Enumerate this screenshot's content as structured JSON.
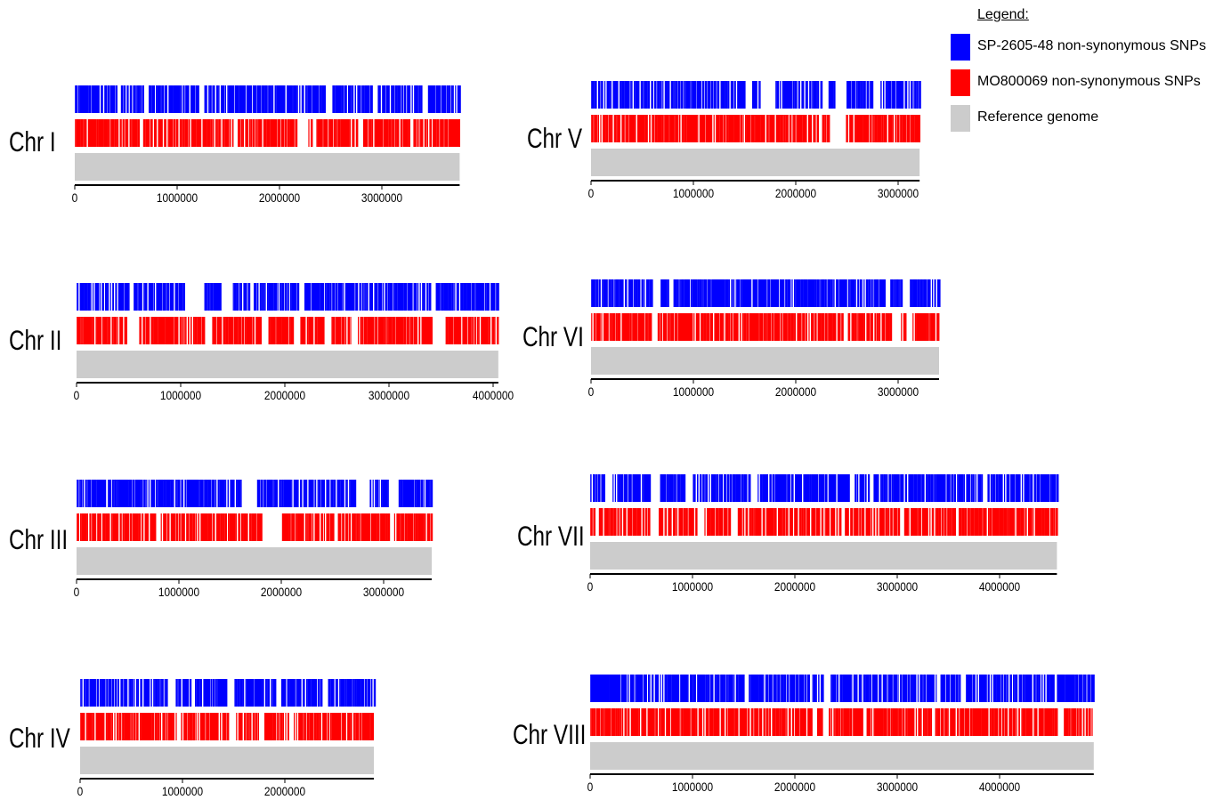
{
  "legend": {
    "title": "Legend:",
    "items": [
      {
        "label": "SP-2605-48 non-synonymous SNPs",
        "color": "#0000ff"
      },
      {
        "label": "MO800069 non-synonymous SNPs",
        "color": "#ff0000"
      },
      {
        "label": "Reference genome",
        "color": "#cccccc"
      }
    ]
  },
  "chart_data": [
    {
      "type": "bar",
      "title": "Chr I",
      "length": 3760000,
      "xticks": [
        0,
        1000000,
        2000000,
        3000000
      ],
      "series": [
        {
          "name": "SP-2605-48 non-synonymous SNPs",
          "color": "#0000ff",
          "gaps": [
            [
              400000,
              450000
            ],
            [
              680000,
              720000
            ],
            [
              1200000,
              1260000
            ],
            [
              2450000,
              2500000
            ],
            [
              2920000,
              2960000
            ],
            [
              3400000,
              3430000
            ]
          ]
        },
        {
          "name": "MO800069 non-synonymous SNPs",
          "color": "#ff0000",
          "gaps": [
            [
              630000,
              660000
            ],
            [
              1550000,
              1590000
            ],
            [
              2170000,
              2280000
            ],
            [
              2320000,
              2340000
            ],
            [
              2760000,
              2800000
            ],
            [
              3270000,
              3300000
            ]
          ]
        },
        {
          "name": "Reference genome",
          "color": "#cccccc"
        }
      ]
    },
    {
      "type": "bar",
      "title": "Chr II",
      "length": 4050000,
      "xticks": [
        0,
        1000000,
        2000000,
        3000000,
        4000000
      ],
      "series": [
        {
          "name": "SP-2605-48 non-synonymous SNPs",
          "color": "#0000ff",
          "gaps": [
            [
              500000,
              540000
            ],
            [
              1040000,
              1220000
            ],
            [
              1380000,
              1500000
            ],
            [
              1650000,
              1700000
            ],
            [
              2120000,
              2180000
            ],
            [
              3400000,
              3440000
            ]
          ]
        },
        {
          "name": "MO800069 non-synonymous SNPs",
          "color": "#ff0000",
          "gaps": [
            [
              470000,
              590000
            ],
            [
              1220000,
              1300000
            ],
            [
              1760000,
              1830000
            ],
            [
              2070000,
              2140000
            ],
            [
              2380000,
              2440000
            ],
            [
              2640000,
              2690000
            ],
            [
              3410000,
              3530000
            ]
          ]
        },
        {
          "name": "Reference genome",
          "color": "#cccccc"
        }
      ]
    },
    {
      "type": "bar",
      "title": "Chr III",
      "length": 3470000,
      "xticks": [
        0,
        1000000,
        2000000,
        3000000
      ],
      "series": [
        {
          "name": "SP-2605-48 non-synonymous SNPs",
          "color": "#0000ff",
          "gaps": [
            [
              270000,
              300000
            ],
            [
              1620000,
              1750000
            ],
            [
              2720000,
              2850000
            ],
            [
              3050000,
              3140000
            ]
          ]
        },
        {
          "name": "MO800069 non-synonymous SNPs",
          "color": "#ff0000",
          "gaps": [
            [
              780000,
              820000
            ],
            [
              1800000,
              2000000
            ],
            [
              2500000,
              2540000
            ],
            [
              3060000,
              3100000
            ]
          ]
        },
        {
          "name": "Reference genome",
          "color": "#cccccc"
        }
      ]
    },
    {
      "type": "bar",
      "title": "Chr IV",
      "length": 2870000,
      "xticks": [
        0,
        1000000,
        2000000
      ],
      "series": [
        {
          "name": "SP-2605-48 non-synonymous SNPs",
          "color": "#0000ff",
          "gaps": [
            [
              850000,
              920000
            ],
            [
              1070000,
              1110000
            ],
            [
              1430000,
              1500000
            ],
            [
              1900000,
              1960000
            ],
            [
              2350000,
              2410000
            ]
          ]
        },
        {
          "name": "MO800069 non-synonymous SNPs",
          "color": "#ff0000",
          "gaps": [
            [
              950000,
              980000
            ],
            [
              1460000,
              1520000
            ],
            [
              1740000,
              1800000
            ],
            [
              2040000,
              2080000
            ]
          ]
        },
        {
          "name": "Reference genome",
          "color": "#cccccc"
        }
      ]
    },
    {
      "type": "bar",
      "title": "Chr V",
      "length": 3210000,
      "xticks": [
        0,
        1000000,
        2000000,
        3000000
      ],
      "series": [
        {
          "name": "SP-2605-48 non-synonymous SNPs",
          "color": "#0000ff",
          "gaps": [
            [
              1500000,
              1570000
            ],
            [
              1650000,
              1800000
            ],
            [
              2260000,
              2300000
            ],
            [
              2370000,
              2480000
            ],
            [
              2740000,
              2820000
            ]
          ]
        },
        {
          "name": "MO800069 non-synonymous SNPs",
          "color": "#ff0000",
          "gaps": [
            [
              2210000,
              2250000
            ],
            [
              2330000,
              2490000
            ]
          ]
        },
        {
          "name": "Reference genome",
          "color": "#cccccc"
        }
      ]
    },
    {
      "type": "bar",
      "title": "Chr VI",
      "length": 3400000,
      "xticks": [
        0,
        1000000,
        2000000,
        3000000
      ],
      "series": [
        {
          "name": "SP-2605-48 non-synonymous SNPs",
          "color": "#0000ff",
          "gaps": [
            [
              590000,
              660000
            ],
            [
              750000,
              800000
            ],
            [
              2860000,
              2910000
            ],
            [
              3030000,
              3100000
            ]
          ]
        },
        {
          "name": "MO800069 non-synonymous SNPs",
          "color": "#ff0000",
          "gaps": [
            [
              600000,
              650000
            ],
            [
              2450000,
              2500000
            ],
            [
              2950000,
              3020000
            ],
            [
              3080000,
              3130000
            ]
          ]
        },
        {
          "name": "Reference genome",
          "color": "#cccccc"
        }
      ]
    },
    {
      "type": "bar",
      "title": "Chr VII",
      "length": 4560000,
      "xticks": [
        0,
        1000000,
        2000000,
        3000000,
        4000000
      ],
      "series": [
        {
          "name": "SP-2605-48 non-synonymous SNPs",
          "color": "#0000ff",
          "gaps": [
            [
              130000,
              200000
            ],
            [
              580000,
              680000
            ],
            [
              930000,
              1000000
            ],
            [
              1560000,
              1620000
            ],
            [
              2520000,
              2580000
            ],
            [
              2720000,
              2760000
            ],
            [
              3830000,
              3880000
            ]
          ]
        },
        {
          "name": "MO800069 non-synonymous SNPs",
          "color": "#ff0000",
          "gaps": [
            [
              40000,
              80000
            ],
            [
              580000,
              660000
            ],
            [
              1050000,
              1110000
            ],
            [
              1380000,
              1420000
            ],
            [
              2440000,
              2480000
            ],
            [
              3010000,
              3050000
            ],
            [
              3560000,
              3600000
            ]
          ]
        },
        {
          "name": "Reference genome",
          "color": "#cccccc"
        }
      ]
    },
    {
      "type": "bar",
      "title": "Chr VIII",
      "length": 4920000,
      "xticks": [
        0,
        1000000,
        2000000,
        3000000,
        4000000
      ],
      "series": [
        {
          "name": "SP-2605-48 non-synonymous SNPs",
          "color": "#0000ff",
          "gaps": [
            [
              1500000,
              1540000
            ],
            [
              2130000,
              2170000
            ],
            [
              2270000,
              2340000
            ],
            [
              3380000,
              3420000
            ],
            [
              3610000,
              3650000
            ],
            [
              4520000,
              4560000
            ]
          ]
        },
        {
          "name": "MO800069 non-synonymous SNPs",
          "color": "#ff0000",
          "gaps": [
            [
              2170000,
              2210000
            ],
            [
              2280000,
              2320000
            ],
            [
              2660000,
              2700000
            ],
            [
              3330000,
              3370000
            ],
            [
              4580000,
              4620000
            ]
          ]
        },
        {
          "name": "Reference genome",
          "color": "#cccccc"
        }
      ]
    }
  ]
}
